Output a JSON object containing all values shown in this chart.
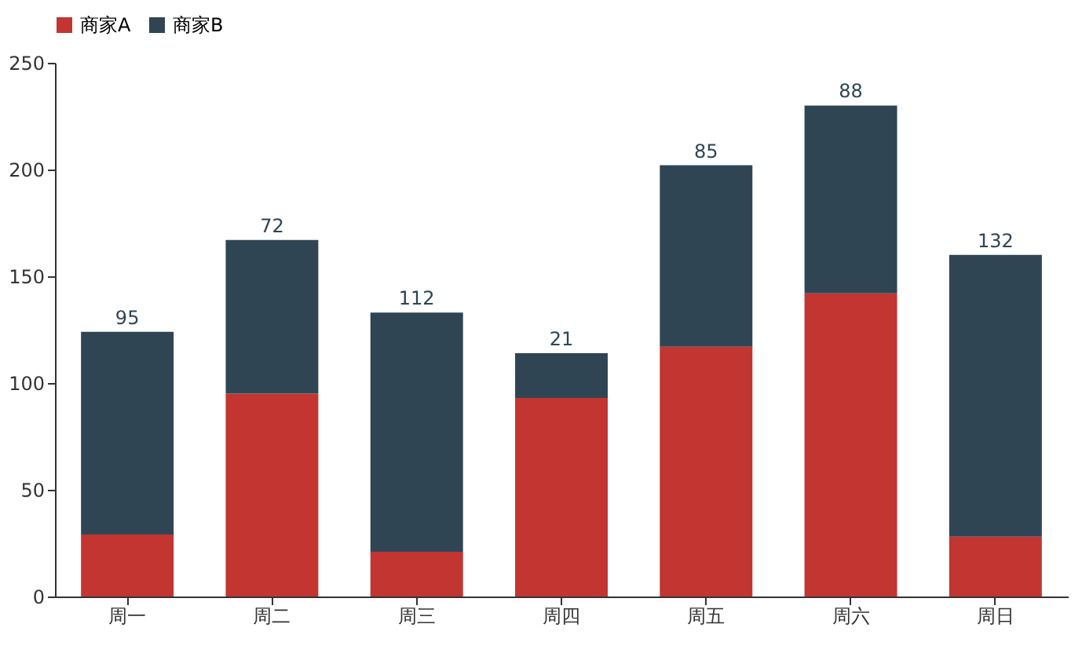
{
  "chart_data": {
    "type": "bar",
    "stacked": true,
    "categories": [
      "周一",
      "周二",
      "周三",
      "周四",
      "周五",
      "周六",
      "周日"
    ],
    "series": [
      {
        "name": "商家A",
        "color": "#c23531",
        "values": [
          29,
          95,
          21,
          93,
          117,
          142,
          28
        ]
      },
      {
        "name": "商家B",
        "color": "#2f4554",
        "values": [
          95,
          72,
          112,
          21,
          85,
          88,
          132
        ],
        "value_labels": [
          "95",
          "72",
          "112",
          "21",
          "85",
          "88",
          "132"
        ]
      }
    ],
    "ylim": [
      0,
      250
    ],
    "yticks": [
      0,
      50,
      100,
      150,
      200,
      250
    ],
    "grid": false,
    "legend": "top"
  }
}
